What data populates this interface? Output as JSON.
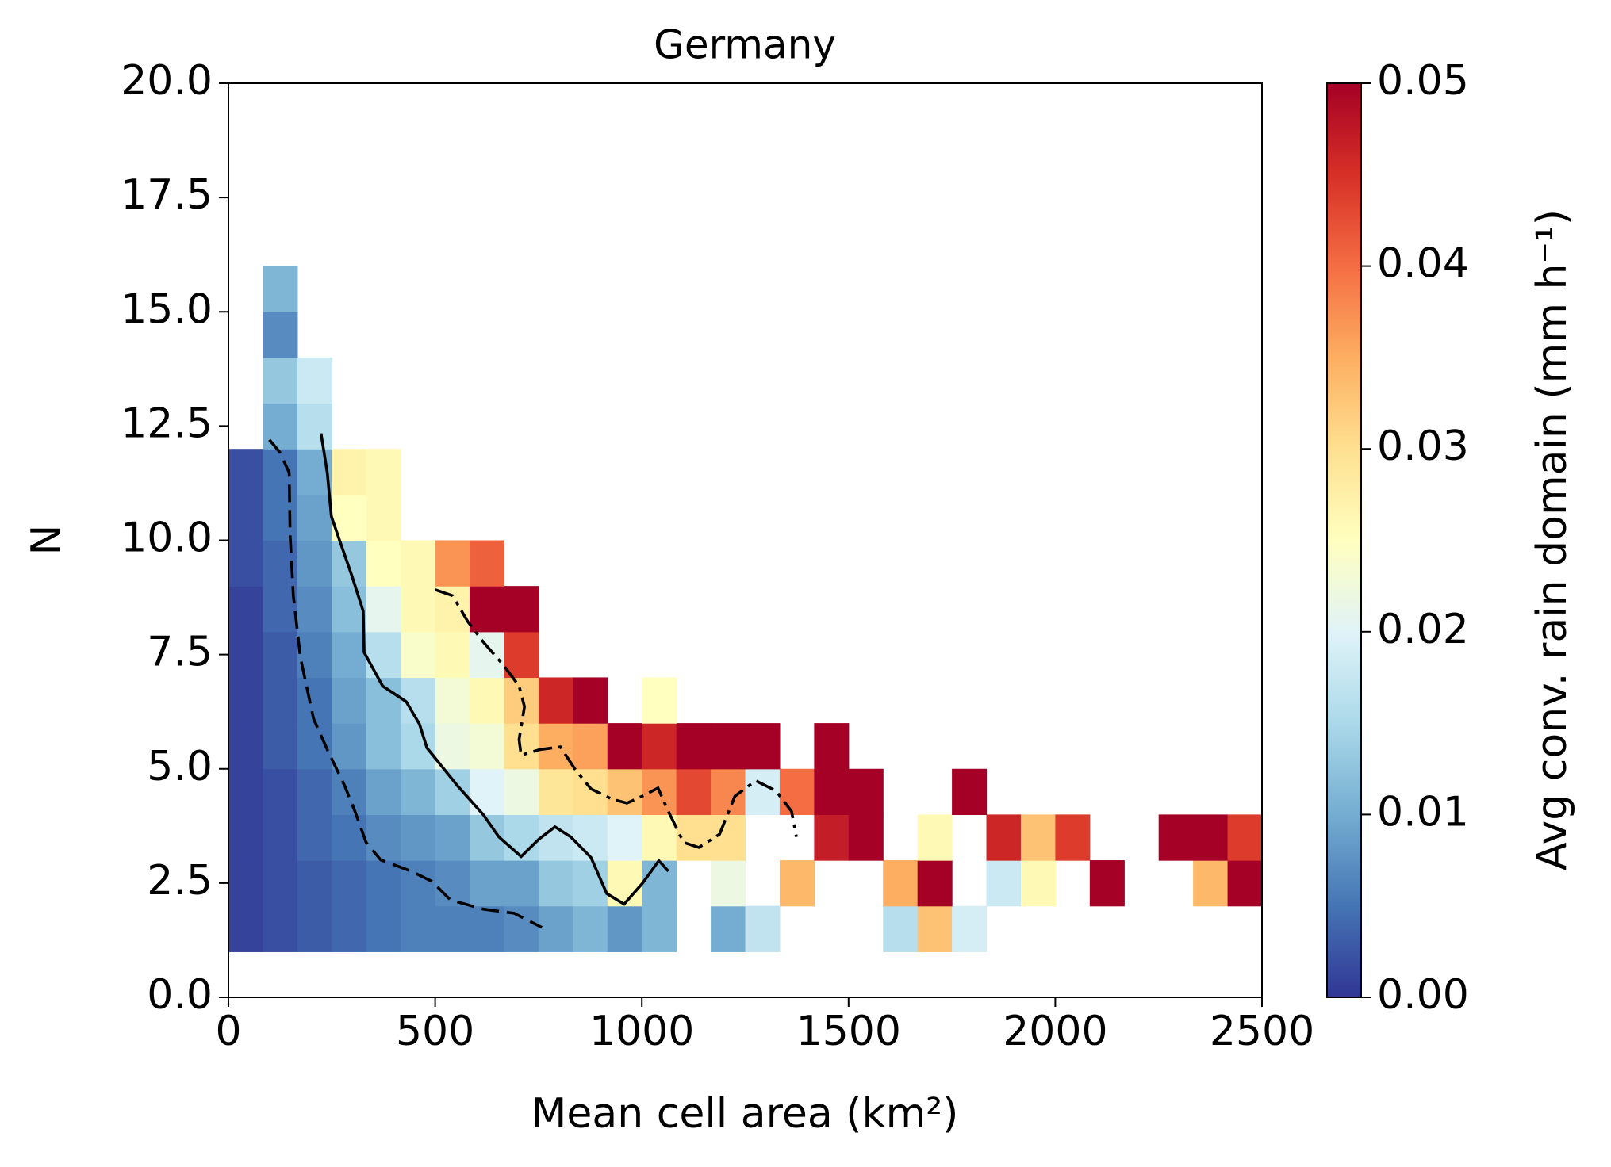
{
  "chart_data": {
    "type": "heatmap",
    "title": "Germany",
    "xlabel": "Mean cell area (km²)",
    "ylabel": "N",
    "colormap": "RdYlBu_r",
    "xlim": [
      0,
      2500
    ],
    "xticks": [
      0,
      500,
      1000,
      1500,
      2000,
      2500
    ],
    "ylim": [
      0,
      20
    ],
    "yticks": [
      {
        "value": 0,
        "label": "0.0"
      },
      2.5,
      {
        "value": 5,
        "label": "5.0"
      },
      7.5,
      {
        "value": 10,
        "label": "10.0"
      },
      12.5,
      {
        "value": 15,
        "label": "15.0"
      },
      17.5,
      {
        "value": 20,
        "label": "20.0"
      }
    ],
    "colorbar": {
      "label": "Avg conv. rain domain (mm h⁻¹)",
      "lim": [
        0,
        0.05
      ],
      "ticks": [
        {
          "value": 0,
          "label": "0.00"
        },
        0.01,
        0.02,
        0.03,
        0.04,
        0.05
      ]
    },
    "x_edges": [
      0,
      83.3,
      166.7,
      250,
      333.3,
      416.7,
      500,
      583.3,
      666.7,
      750,
      833.3,
      916.7,
      1000,
      1083.3,
      1166.7,
      1250,
      1333.3,
      1416.7,
      1500,
      1583.3,
      1666.7,
      1750,
      1833.3,
      1916.7,
      2000,
      2083.3,
      2166.7,
      2250,
      2333.3,
      2416.7,
      2500
    ],
    "y_edges": [
      1,
      2,
      3,
      4,
      5,
      6,
      7,
      8,
      9,
      10,
      11,
      12,
      13,
      14,
      15,
      16
    ],
    "z": [
      [
        0.001,
        0.002,
        0.003,
        0.004,
        0.005,
        0.006,
        0.006,
        0.006,
        0.007,
        0.009,
        0.011,
        0.008,
        0.011,
        null,
        0.01,
        0.017,
        null,
        null,
        null,
        0.016,
        0.033,
        0.019,
        null,
        null,
        null,
        null,
        null,
        null,
        null,
        null
      ],
      [
        0.001,
        0.002,
        0.003,
        0.004,
        0.005,
        0.006,
        0.007,
        0.009,
        0.009,
        0.013,
        0.014,
        0.026,
        0.011,
        null,
        0.022,
        null,
        0.034,
        null,
        null,
        0.035,
        0.05,
        null,
        0.018,
        0.026,
        null,
        0.05,
        null,
        null,
        0.034,
        0.05
      ],
      [
        0.001,
        0.002,
        0.004,
        0.005,
        0.007,
        0.008,
        0.009,
        0.013,
        0.015,
        0.017,
        0.018,
        0.02,
        0.026,
        0.03,
        0.03,
        null,
        null,
        0.047,
        0.05,
        null,
        0.026,
        null,
        0.046,
        0.033,
        0.044,
        null,
        null,
        0.05,
        0.05,
        0.044
      ],
      [
        0.001,
        0.002,
        0.004,
        0.006,
        0.009,
        0.011,
        0.014,
        0.02,
        0.022,
        0.029,
        0.03,
        0.033,
        0.037,
        0.043,
        0.038,
        0.019,
        0.04,
        0.05,
        0.05,
        null,
        null,
        0.05,
        null,
        null,
        null,
        null,
        null,
        null,
        null,
        null
      ],
      [
        0.001,
        0.003,
        0.005,
        0.008,
        0.012,
        0.015,
        0.022,
        0.023,
        0.03,
        0.035,
        0.036,
        0.05,
        0.046,
        0.05,
        0.05,
        0.05,
        null,
        0.05,
        null,
        null,
        null,
        null,
        null,
        null,
        null,
        null,
        null,
        null,
        null,
        null
      ],
      [
        0.001,
        0.003,
        0.005,
        0.009,
        0.012,
        0.016,
        0.023,
        0.026,
        0.032,
        0.046,
        0.05,
        null,
        0.025,
        null,
        null,
        null,
        null,
        null,
        null,
        null,
        null,
        null,
        null,
        null,
        null,
        null,
        null,
        null,
        null,
        null
      ],
      [
        0.001,
        0.003,
        0.006,
        0.01,
        0.016,
        0.024,
        0.026,
        0.021,
        0.044,
        null,
        null,
        null,
        null,
        null,
        null,
        null,
        null,
        null,
        null,
        null,
        null,
        null,
        null,
        null,
        null,
        null,
        null,
        null,
        null,
        null
      ],
      [
        0.001,
        0.004,
        0.007,
        0.012,
        0.021,
        0.026,
        0.027,
        0.05,
        0.05,
        null,
        null,
        null,
        null,
        null,
        null,
        null,
        null,
        null,
        null,
        null,
        null,
        null,
        null,
        null,
        null,
        null,
        null,
        null,
        null,
        null
      ],
      [
        0.002,
        0.004,
        0.008,
        0.013,
        0.025,
        0.026,
        0.037,
        0.041,
        null,
        null,
        null,
        null,
        null,
        null,
        null,
        null,
        null,
        null,
        null,
        null,
        null,
        null,
        null,
        null,
        null,
        null,
        null,
        null,
        null,
        null
      ],
      [
        0.002,
        0.005,
        0.009,
        0.025,
        0.026,
        null,
        null,
        null,
        null,
        null,
        null,
        null,
        null,
        null,
        null,
        null,
        null,
        null,
        null,
        null,
        null,
        null,
        null,
        null,
        null,
        null,
        null,
        null,
        null,
        null
      ],
      [
        0.002,
        0.005,
        0.01,
        0.027,
        0.026,
        null,
        null,
        null,
        null,
        null,
        null,
        null,
        null,
        null,
        null,
        null,
        null,
        null,
        null,
        null,
        null,
        null,
        null,
        null,
        null,
        null,
        null,
        null,
        null,
        null
      ],
      [
        null,
        0.01,
        0.016,
        null,
        null,
        null,
        null,
        null,
        null,
        null,
        null,
        null,
        null,
        null,
        null,
        null,
        null,
        null,
        null,
        null,
        null,
        null,
        null,
        null,
        null,
        null,
        null,
        null,
        null,
        null
      ],
      [
        null,
        0.013,
        0.018,
        null,
        null,
        null,
        null,
        null,
        null,
        null,
        null,
        null,
        null,
        null,
        null,
        null,
        null,
        null,
        null,
        null,
        null,
        null,
        null,
        null,
        null,
        null,
        null,
        null,
        null,
        null
      ],
      [
        null,
        0.007,
        null,
        null,
        null,
        null,
        null,
        null,
        null,
        null,
        null,
        null,
        null,
        null,
        null,
        null,
        null,
        null,
        null,
        null,
        null,
        null,
        null,
        null,
        null,
        null,
        null,
        null,
        null,
        null
      ],
      [
        null,
        0.011,
        null,
        null,
        null,
        null,
        null,
        null,
        null,
        null,
        null,
        null,
        null,
        null,
        null,
        null,
        null,
        null,
        null,
        null,
        null,
        null,
        null,
        null,
        null,
        null,
        null,
        null,
        null,
        null
      ]
    ],
    "lines": [
      {
        "style": "dashed",
        "color": "#000000",
        "x": [
          99,
          124,
          147,
          149,
          157,
          174,
          206,
          239,
          281,
          306,
          333,
          368,
          442,
          492,
          537,
          616,
          691,
          758
        ],
        "y": [
          12.2,
          11.93,
          11.48,
          10.13,
          8.79,
          7.44,
          6.09,
          5.42,
          4.63,
          4.07,
          3.39,
          3.01,
          2.76,
          2.54,
          2.13,
          1.93,
          1.84,
          1.53
        ]
      },
      {
        "style": "solid",
        "color": "#000000",
        "x": [
          224,
          239,
          249,
          268,
          298,
          326,
          328,
          373,
          430,
          462,
          480,
          554,
          616,
          654,
          708,
          751,
          790,
          828,
          877,
          915,
          957,
          1001,
          1041,
          1064
        ],
        "y": [
          12.34,
          11.48,
          10.52,
          10.02,
          9.24,
          8.45,
          7.55,
          6.81,
          6.47,
          5.98,
          5.46,
          4.63,
          4.0,
          3.51,
          3.08,
          3.46,
          3.73,
          3.51,
          3.06,
          2.27,
          2.04,
          2.49,
          2.99,
          2.76
        ]
      },
      {
        "style": "dashdot",
        "color": "#000000",
        "x": [
          500,
          542,
          579,
          616,
          666,
          703,
          716,
          703,
          708,
          753,
          803,
          840,
          877,
          927,
          964,
          1001,
          1039,
          1064,
          1101,
          1138,
          1188,
          1225,
          1275,
          1324,
          1362,
          1374
        ],
        "y": [
          8.92,
          8.79,
          8.22,
          7.78,
          7.26,
          6.81,
          6.36,
          5.64,
          5.3,
          5.42,
          5.48,
          4.97,
          4.56,
          4.34,
          4.25,
          4.4,
          4.58,
          4.07,
          3.39,
          3.28,
          3.57,
          4.4,
          4.74,
          4.52,
          4.07,
          3.51
        ]
      }
    ]
  }
}
